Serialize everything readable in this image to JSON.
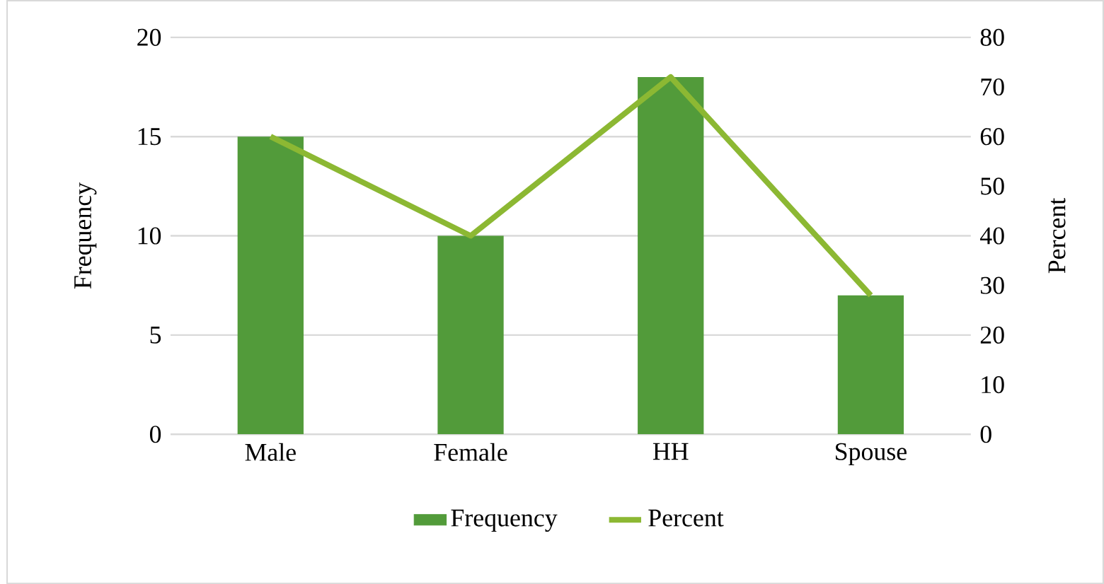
{
  "chart_data": {
    "type": "bar",
    "categories": [
      "Male",
      "Female",
      "HH",
      "Spouse"
    ],
    "series": [
      {
        "name": "Frequency",
        "color": "#529b3a",
        "values": [
          15,
          10,
          18,
          7
        ]
      },
      {
        "name": "Percent",
        "type": "line",
        "axis": "y2",
        "color": "#8cb833",
        "values": [
          60,
          40,
          72,
          28
        ]
      }
    ],
    "ylabel": "Frequency",
    "y2label": "Percent",
    "ylim": [
      0,
      20
    ],
    "yticks": [
      0,
      5,
      10,
      15,
      20
    ],
    "y2lim": [
      0,
      80
    ],
    "y2ticks": [
      0,
      10,
      20,
      30,
      40,
      50,
      60,
      70,
      80
    ],
    "grid": "y",
    "legend": "bottom"
  }
}
